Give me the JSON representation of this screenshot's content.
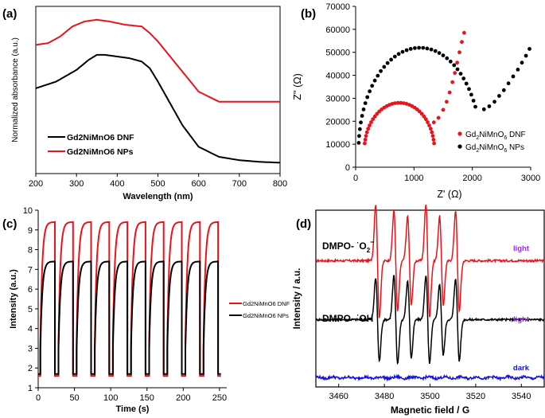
{
  "colors": {
    "red": "#e8141c",
    "black": "#000000",
    "blue": "#1010e0",
    "violet": "#9a2ee6"
  },
  "chart_data": [
    {
      "panel": "(a)",
      "type": "line",
      "xlabel": "Wavelength (nm)",
      "ylabel": "Normalized absorbance (a.u.)",
      "xlim": [
        200,
        800
      ],
      "ylim": [
        0,
        1
      ],
      "xticks": [
        200,
        300,
        400,
        500,
        600,
        700,
        800
      ],
      "yticks_shown": false,
      "legend_position": "bottom-left",
      "series": [
        {
          "name": "Gd2NiMnO6 DNF",
          "color": "#000000",
          "x": [
            200,
            250,
            300,
            330,
            350,
            370,
            400,
            430,
            460,
            480,
            500,
            530,
            560,
            600,
            650,
            700,
            750,
            800
          ],
          "y": [
            0.51,
            0.55,
            0.62,
            0.68,
            0.71,
            0.71,
            0.7,
            0.69,
            0.67,
            0.63,
            0.55,
            0.42,
            0.29,
            0.16,
            0.1,
            0.08,
            0.07,
            0.065
          ]
        },
        {
          "name": "Gd2NiMnO6 NPs",
          "color": "#e8141c",
          "x": [
            200,
            230,
            260,
            290,
            320,
            350,
            380,
            420,
            460,
            480,
            500,
            520,
            550,
            600,
            650,
            700,
            750,
            800
          ],
          "y": [
            0.77,
            0.78,
            0.82,
            0.88,
            0.91,
            0.92,
            0.91,
            0.89,
            0.88,
            0.84,
            0.79,
            0.73,
            0.64,
            0.49,
            0.43,
            0.43,
            0.43,
            0.43
          ]
        }
      ]
    },
    {
      "panel": "(b)",
      "type": "scatter",
      "xlabel": "Z' (Ω)",
      "ylabel": "Z'' (Ω)",
      "xlim": [
        0,
        3000
      ],
      "ylim": [
        0,
        70000
      ],
      "xticks": [
        0,
        1000,
        2000,
        3000
      ],
      "yticks": [
        0,
        10000,
        20000,
        30000,
        40000,
        50000,
        60000,
        70000
      ],
      "legend_position": "bottom-right",
      "legend_labels": [
        {
          "base": "Gd",
          "sub1": "2",
          "mid": "NiMnO",
          "sub2": "6",
          "tail": " DNF"
        },
        {
          "base": "Gd",
          "sub1": "2",
          "mid": "NiMnO",
          "sub2": "6",
          "tail": " NPs"
        }
      ],
      "series": [
        {
          "name": "Gd2NiMnO6 DNF",
          "color": "#e8141c",
          "arc_center": [
            750,
            7500
          ],
          "arc_radius": [
            600,
            20500
          ],
          "arc_start_deg": 172,
          "arc_end_deg": 8,
          "arc_points": 36,
          "tail": {
            "x": [
              1340,
              1420,
              1500,
              1560,
              1610,
              1660,
              1700,
              1740,
              1780,
              1820,
              1860
            ],
            "y": [
              19500,
              21500,
              25000,
              28500,
              32500,
              37000,
              41000,
              45500,
              50000,
              54500,
              58500
            ]
          }
        },
        {
          "name": "Gd2NiMnO6 NPs",
          "color": "#000000",
          "arc_center": [
            1100,
            7500
          ],
          "arc_radius": [
            1050,
            44500
          ],
          "arc_start_deg": 176,
          "arc_end_deg": 25,
          "arc_points": 40,
          "tail": {
            "x": [
              2200,
              2290,
              2380,
              2460,
              2540,
              2620,
              2700,
              2780,
              2850,
              2920,
              2980
            ],
            "y": [
              25200,
              26500,
              28500,
              31000,
              33500,
              36500,
              39500,
              42500,
              45500,
              48500,
              51500
            ]
          }
        }
      ]
    },
    {
      "panel": "(c)",
      "type": "line",
      "xlabel": "Time (s)",
      "ylabel": "Intensity (a.u.)",
      "xlim": [
        0,
        260
      ],
      "ylim": [
        1,
        10
      ],
      "xticks": [
        0,
        50,
        100,
        150,
        200,
        250
      ],
      "yticks": [
        1,
        2,
        3,
        4,
        5,
        6,
        7,
        8,
        9,
        10
      ],
      "legend_position": "right",
      "period_s": 25,
      "cycles": 10,
      "first_on_s": 3,
      "on_duration_s": 20,
      "series": [
        {
          "name": "Gd2NiMnO6 DNF",
          "color": "#e8141c",
          "baseline": 1.6,
          "plateau": 9.4
        },
        {
          "name": "Gd2NiMnO6 NPs",
          "color": "#000000",
          "baseline": 1.7,
          "plateau": 7.4
        }
      ]
    },
    {
      "panel": "(d)",
      "type": "line",
      "xlabel": "Magnetic field / G",
      "ylabel": "Intensity / a.u.",
      "xlim": [
        3450,
        3550
      ],
      "xticks": [
        3460,
        3480,
        3500,
        3520,
        3540
      ],
      "yticks_shown": false,
      "series": [
        {
          "name": "DMPO-O2",
          "label_prefix": "DMPO- ",
          "label_dot": "·",
          "label_species": "O",
          "label_sub": "2",
          "label_sup": "−",
          "tag": "light",
          "color": "#e8141c",
          "baseline": 3.0,
          "peaks": [
            3477,
            3485,
            3491,
            3499,
            3505,
            3512
          ],
          "amps": [
            1.9,
            1.7,
            1.5,
            1.9,
            1.5,
            1.7
          ]
        },
        {
          "name": "DMPO-OH",
          "label_prefix": "DMPO- ",
          "label_dot": "·",
          "label_species": "OH",
          "tag": "light",
          "color": "#000000",
          "baseline": 1.6,
          "peaks": [
            3477,
            3485,
            3491,
            3499,
            3505,
            3512
          ],
          "amps": [
            1.4,
            1.5,
            1.3,
            1.5,
            1.2,
            1.4
          ]
        },
        {
          "name": "dark",
          "tag": "dark",
          "color": "#1010e0",
          "baseline": 0.22,
          "noise": 0.03
        }
      ],
      "ylim": [
        0,
        4.2
      ]
    }
  ]
}
